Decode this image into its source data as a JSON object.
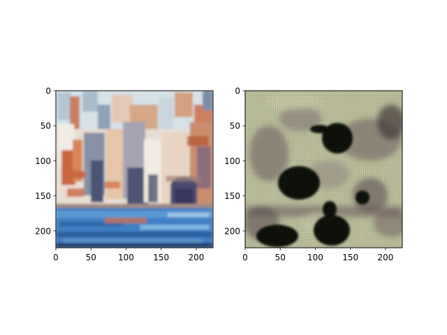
{
  "chart_data": [
    {
      "type": "image",
      "image": "impressionist painting of a waterfront town with a blue harbor and an arched doorway",
      "xticks": [
        0,
        50,
        100,
        150,
        200
      ],
      "yticks": [
        0,
        50,
        100,
        150,
        200
      ],
      "xlim": [
        0,
        224
      ],
      "ylim": [
        224,
        0
      ],
      "title": "",
      "xlabel": "",
      "ylabel": ""
    },
    {
      "type": "image",
      "image": "noisy feature map with pale greenish texture, purple-gray smudges and several dark blobs",
      "xticks": [
        0,
        50,
        100,
        150,
        200
      ],
      "yticks": [
        0,
        50,
        100,
        150,
        200
      ],
      "xlim": [
        0,
        224
      ],
      "ylim": [
        224,
        0
      ],
      "title": "",
      "xlabel": "",
      "ylabel": ""
    }
  ],
  "colors": {
    "water_blue": "#3f7fc4",
    "brick_orange": "#c9673f",
    "sky_pale": "#dfe8ec",
    "map_pale": "#c9c9a8",
    "map_purple": "#6d5560",
    "map_dark": "#020302"
  }
}
